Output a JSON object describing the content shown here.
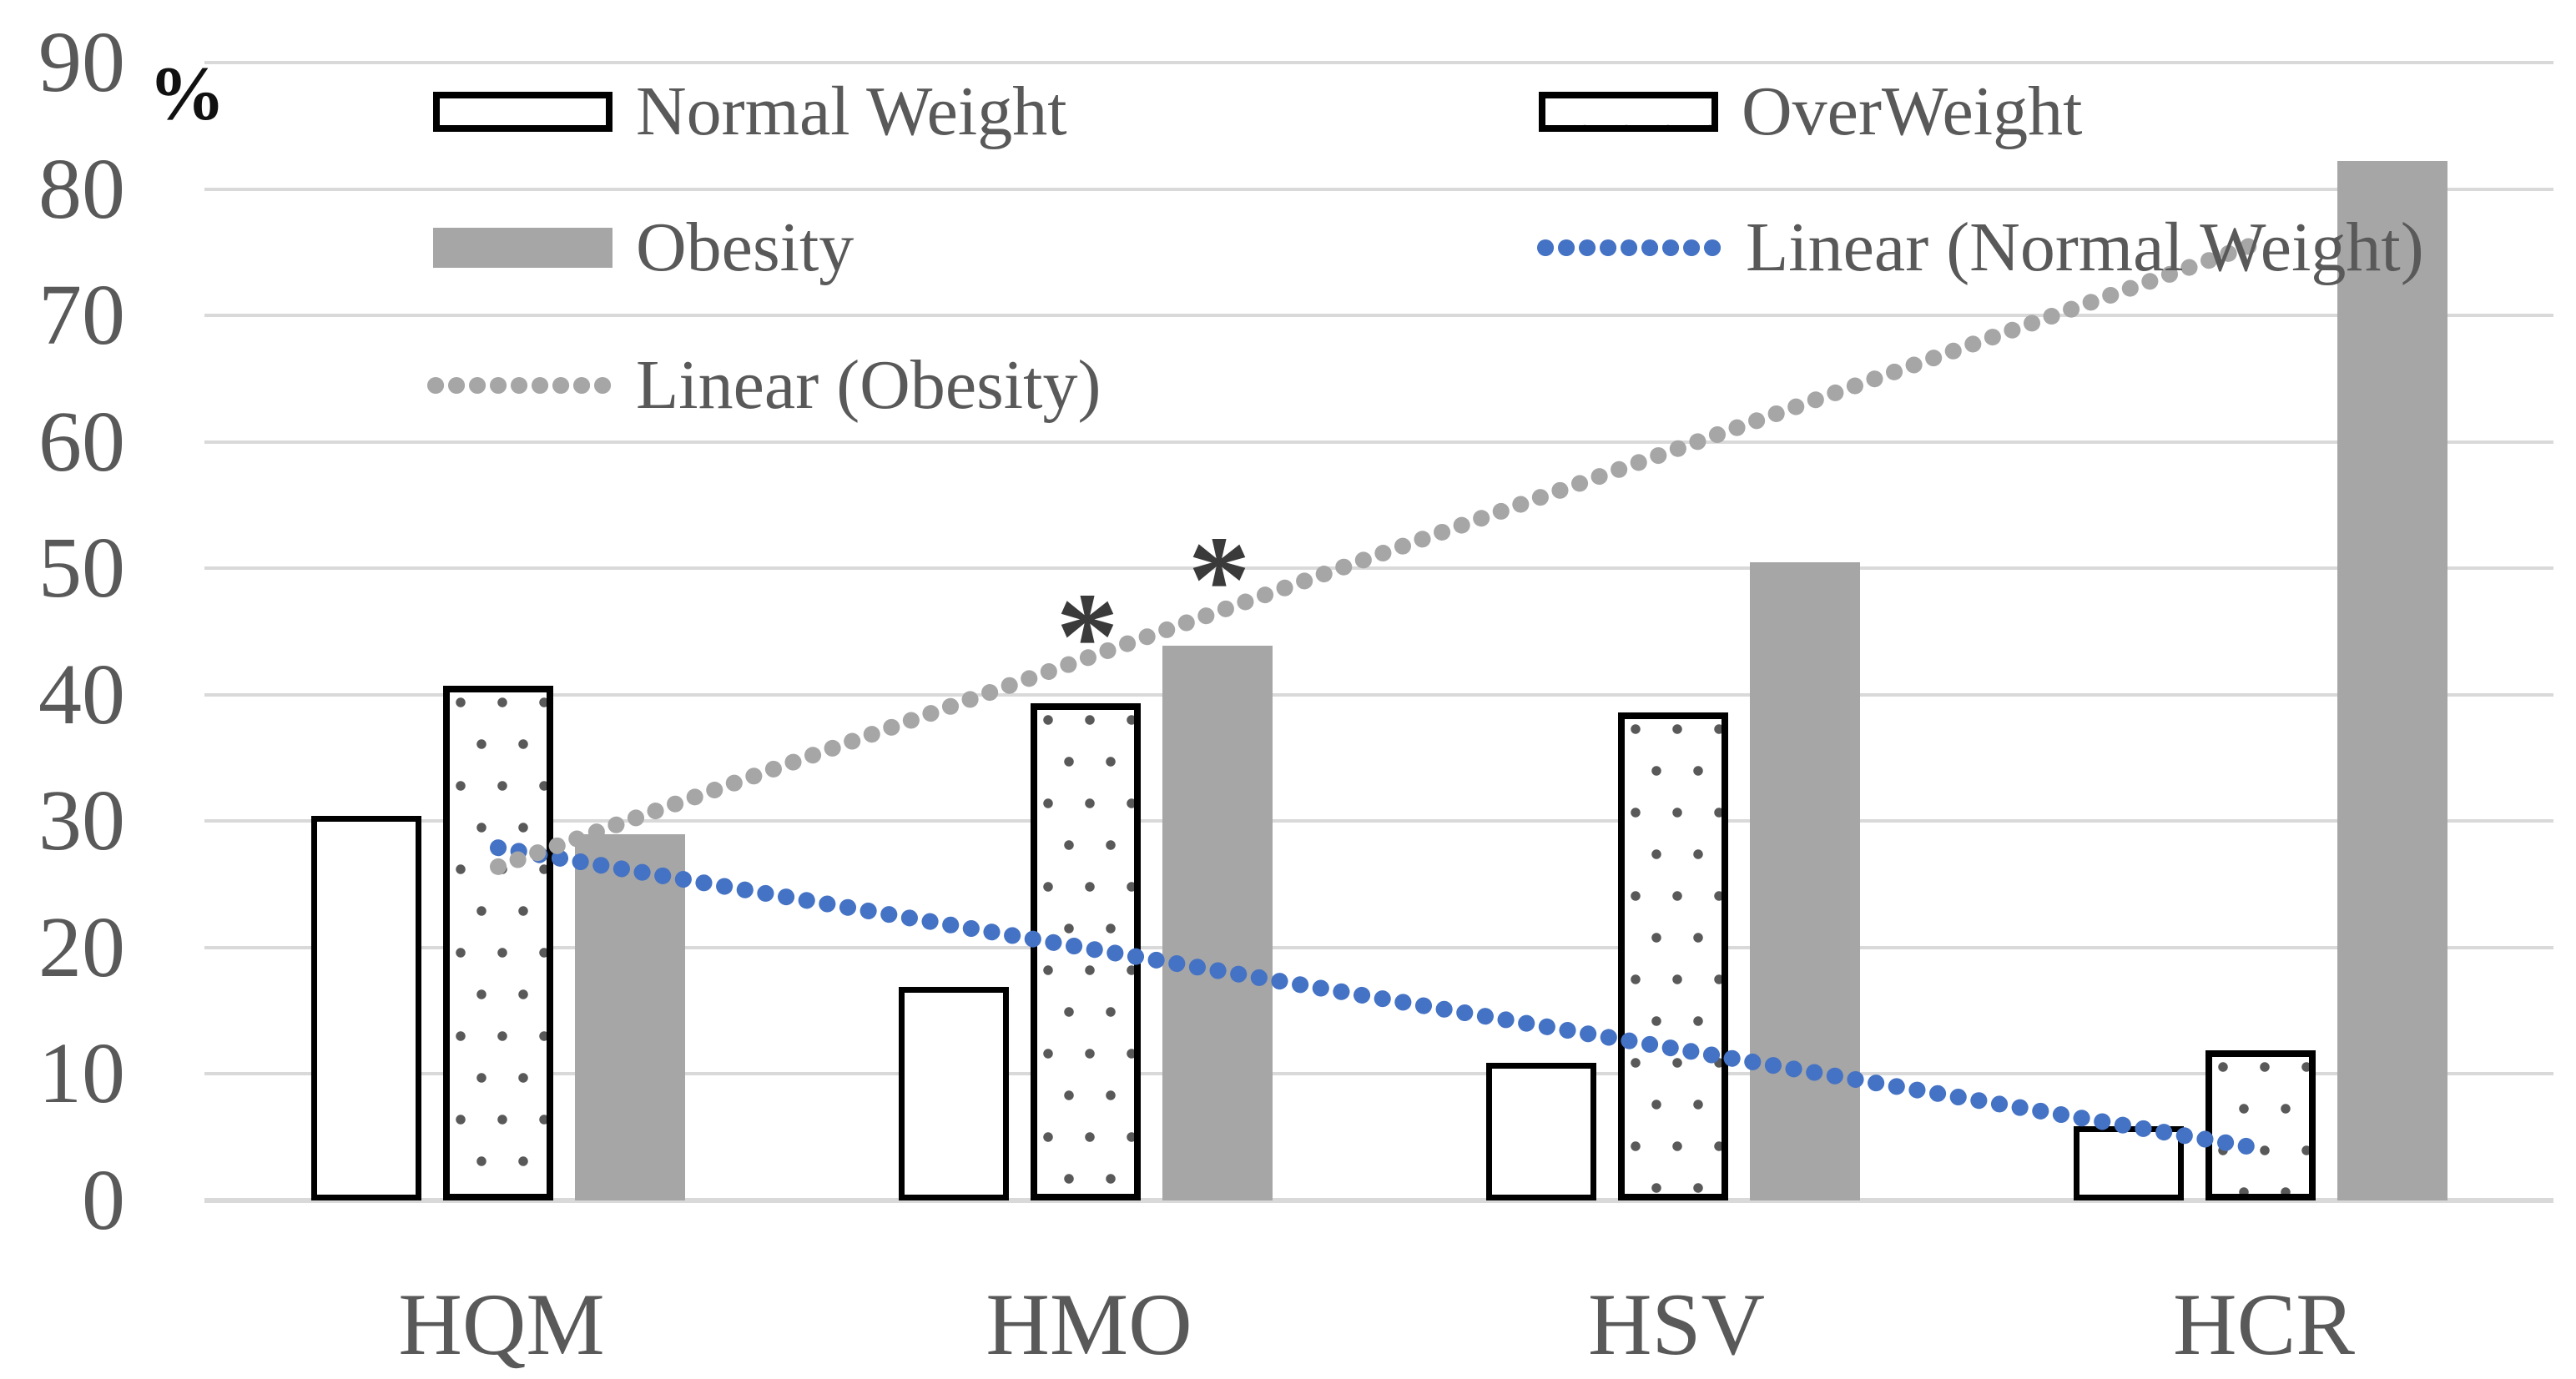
{
  "chart_data": {
    "type": "bar",
    "title": "",
    "ylabel": "%",
    "categories": [
      "HQM",
      "HMO",
      "HSV",
      "HCR"
    ],
    "series": [
      {
        "name": "Normal Weight",
        "style": "outline-white",
        "values": [
          30.4,
          16.9,
          10.9,
          5.9
        ]
      },
      {
        "name": "OverWeight",
        "style": "dotted-pattern",
        "values": [
          40.7,
          39.3,
          38.6,
          11.9
        ]
      },
      {
        "name": "Obesity",
        "style": "solid-gray",
        "values": [
          29.0,
          43.9,
          50.5,
          82.2
        ]
      }
    ],
    "trendlines": [
      {
        "name": "Linear (Normal Weight)",
        "color": "#4472C4",
        "start_value": 27.9,
        "end_value": 4.1
      },
      {
        "name": "Linear (Obesity)",
        "color": "#A6A6A6",
        "start_value": 26.4,
        "end_value": 75.8
      }
    ],
    "annotations": [
      {
        "text": "*",
        "category": "HMO",
        "series": "OverWeight",
        "value": 46.5
      },
      {
        "text": "*",
        "category": "HMO",
        "series": "Obesity",
        "value": 51.0
      }
    ],
    "ylim": [
      0,
      90
    ],
    "yticks": [
      0,
      10,
      20,
      30,
      40,
      50,
      60,
      70,
      80,
      90
    ],
    "grid": true,
    "legend_position": "top-inside"
  },
  "colors": {
    "trend_blue": "#4472C4",
    "trend_gray": "#A6A6A6",
    "bar_gray": "#A6A6A6",
    "gridline": "#D9D9D9",
    "axis_text": "#595959",
    "pattern_dot": "#595959",
    "bar_outline": "#000000",
    "annotation": "#3A3A3A"
  }
}
